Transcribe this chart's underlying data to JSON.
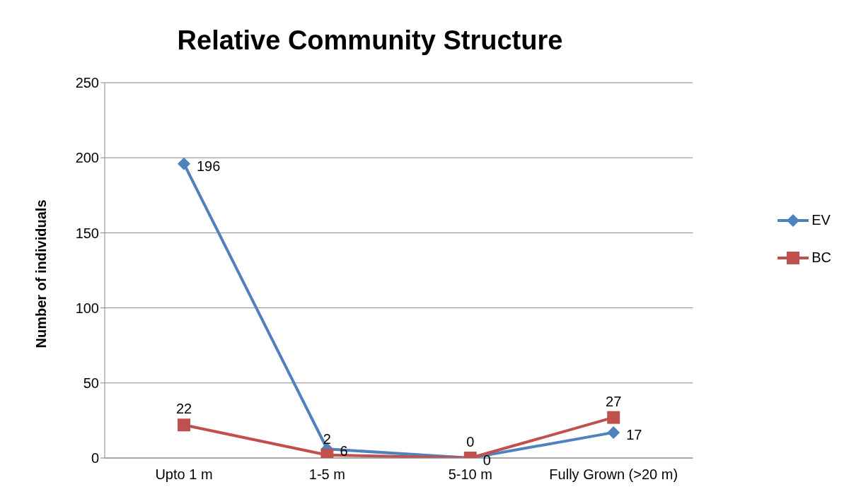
{
  "chart_data": {
    "type": "line",
    "title": "Relative Community Structure",
    "ylabel": "Number of individuals",
    "categories": [
      "Upto 1 m",
      "1-5 m",
      "5-10 m",
      "Fully Grown (>20 m)"
    ],
    "series": [
      {
        "name": "EV",
        "color": "#4f81bd",
        "marker": "diamond",
        "values": [
          196,
          6,
          0,
          17
        ]
      },
      {
        "name": "BC",
        "color": "#c0504d",
        "marker": "square",
        "values": [
          22,
          2,
          0,
          27
        ]
      }
    ],
    "ylim": [
      0,
      250
    ],
    "yticks": [
      0,
      50,
      100,
      150,
      200,
      250
    ],
    "grid": "y",
    "legend": "right",
    "data_labels": true
  }
}
